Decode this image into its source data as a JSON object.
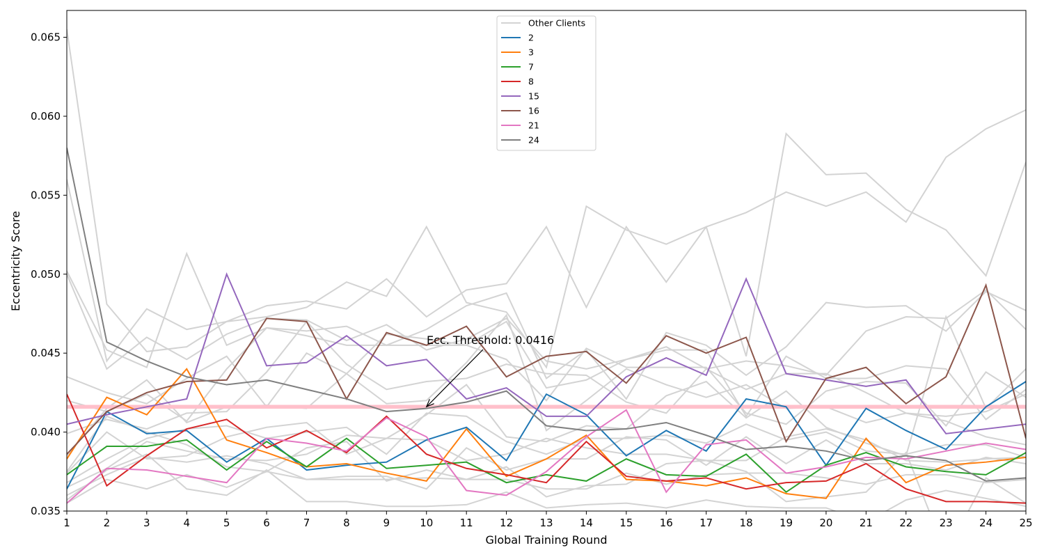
{
  "chart_data": {
    "type": "line",
    "xlabel": "Global Training Round",
    "ylabel": "Eccentricity Score",
    "x": [
      1,
      2,
      3,
      4,
      5,
      6,
      7,
      8,
      9,
      10,
      11,
      12,
      13,
      14,
      15,
      16,
      17,
      18,
      19,
      20,
      21,
      22,
      23,
      24,
      25
    ],
    "xlim": [
      1,
      25
    ],
    "ylim": [
      0.035,
      0.0667
    ],
    "yticks": [
      0.035,
      0.04,
      0.045,
      0.05,
      0.055,
      0.06,
      0.065
    ],
    "ytick_labels": [
      "0.035",
      "0.040",
      "0.045",
      "0.050",
      "0.055",
      "0.060",
      "0.065"
    ],
    "grid": false,
    "legend_position": "top-center",
    "other_clients_label": "Other Clients",
    "other_clients_color": "#d3d3d3",
    "other_clients": [
      [
        0.0655,
        0.0481,
        0.0451,
        0.0454,
        0.047,
        0.048,
        0.0483,
        0.0478,
        0.0497,
        0.0473,
        0.049,
        0.0494,
        0.053,
        0.0479,
        0.053,
        0.0495,
        0.053,
        0.0539,
        0.0552,
        0.0543,
        0.0552,
        0.0533,
        0.0574,
        0.0592,
        0.0604
      ],
      [
        0.056,
        0.0445,
        0.0478,
        0.0465,
        0.047,
        0.0473,
        0.0479,
        0.0495,
        0.0486,
        0.053,
        0.0482,
        0.0476,
        0.0441,
        0.0543,
        0.0528,
        0.0519,
        0.053,
        0.0448,
        0.0589,
        0.0563,
        0.0564,
        0.0541,
        0.0528,
        0.0499,
        0.0571
      ],
      [
        0.0502,
        0.0452,
        0.0441,
        0.0513,
        0.0455,
        0.0466,
        0.0464,
        0.0467,
        0.0455,
        0.0465,
        0.048,
        0.0488,
        0.0434,
        0.0452,
        0.0421,
        0.0463,
        0.0455,
        0.0436,
        0.0454,
        0.0482,
        0.0479,
        0.048,
        0.0464,
        0.0489,
        0.0477
      ],
      [
        0.05,
        0.044,
        0.046,
        0.0446,
        0.0462,
        0.0472,
        0.0471,
        0.0458,
        0.0468,
        0.0452,
        0.0459,
        0.0472,
        0.0445,
        0.044,
        0.0446,
        0.0454,
        0.044,
        0.0445,
        0.0442,
        0.0436,
        0.0464,
        0.0473,
        0.0472,
        0.049,
        0.0465
      ],
      [
        0.0435,
        0.0425,
        0.0418,
        0.0434,
        0.0448,
        0.0416,
        0.045,
        0.0437,
        0.0462,
        0.0459,
        0.0455,
        0.047,
        0.0428,
        0.0433,
        0.0446,
        0.0452,
        0.0452,
        0.041,
        0.0448,
        0.0434,
        0.0434,
        0.0442,
        0.044,
        0.0408,
        0.0427
      ],
      [
        0.042,
        0.0413,
        0.0424,
        0.0407,
        0.044,
        0.0466,
        0.0461,
        0.0455,
        0.0455,
        0.0455,
        0.0455,
        0.0446,
        0.042,
        0.0453,
        0.0441,
        0.0441,
        0.0441,
        0.0412,
        0.0405,
        0.0426,
        0.0432,
        0.0431,
        0.0404,
        0.0438,
        0.0422
      ],
      [
        0.0399,
        0.0408,
        0.0402,
        0.0412,
        0.0413,
        0.0438,
        0.047,
        0.0443,
        0.0427,
        0.0432,
        0.0434,
        0.0443,
        0.0437,
        0.0436,
        0.0419,
        0.0412,
        0.044,
        0.0427,
        0.0437,
        0.0437,
        0.0425,
        0.0412,
        0.041,
        0.0413,
        0.0424
      ],
      [
        0.0385,
        0.0415,
        0.0433,
        0.0406,
        0.0416,
        0.0417,
        0.0415,
        0.0437,
        0.0418,
        0.042,
        0.0444,
        0.0474,
        0.0401,
        0.042,
        0.044,
        0.043,
        0.0422,
        0.043,
        0.0415,
        0.0416,
        0.0406,
        0.0412,
        0.0407,
        0.0397,
        0.0392
      ],
      [
        0.0374,
        0.04,
        0.0383,
        0.0385,
        0.0397,
        0.0403,
        0.0406,
        0.0386,
        0.0396,
        0.0411,
        0.043,
        0.0397,
        0.0394,
        0.0404,
        0.0402,
        0.0423,
        0.0432,
        0.0409,
        0.0426,
        0.0403,
        0.0393,
        0.0385,
        0.0473,
        0.0415,
        0.044
      ],
      [
        0.0368,
        0.0383,
        0.0396,
        0.0402,
        0.0404,
        0.0396,
        0.04,
        0.0403,
        0.0386,
        0.0412,
        0.041,
        0.0394,
        0.0386,
        0.0396,
        0.0396,
        0.0398,
        0.0393,
        0.0405,
        0.0395,
        0.04,
        0.0388,
        0.0386,
        0.0392,
        0.0392,
        0.0384
      ],
      [
        0.0365,
        0.0377,
        0.0394,
        0.0388,
        0.0383,
        0.0382,
        0.0386,
        0.0398,
        0.0396,
        0.0395,
        0.0382,
        0.0386,
        0.0396,
        0.039,
        0.0386,
        0.0386,
        0.0382,
        0.0382,
        0.0397,
        0.0402,
        0.0395,
        0.0382,
        0.0381,
        0.0383,
        0.0384
      ],
      [
        0.036,
        0.0373,
        0.0384,
        0.0381,
        0.0385,
        0.038,
        0.037,
        0.0372,
        0.0372,
        0.0364,
        0.039,
        0.0376,
        0.0383,
        0.0383,
        0.0397,
        0.0395,
        0.0379,
        0.0397,
        0.038,
        0.0395,
        0.038,
        0.038,
        0.0376,
        0.0384,
        0.038
      ],
      [
        0.0355,
        0.037,
        0.0364,
        0.0373,
        0.0365,
        0.0375,
        0.037,
        0.037,
        0.037,
        0.0371,
        0.037,
        0.037,
        0.0364,
        0.0364,
        0.0374,
        0.0367,
        0.0373,
        0.0374,
        0.0374,
        0.0371,
        0.0367,
        0.0373,
        0.0373,
        0.0368,
        0.037
      ],
      [
        0.0357,
        0.0376,
        0.0386,
        0.0364,
        0.036,
        0.0376,
        0.0356,
        0.0356,
        0.0353,
        0.0353,
        0.0354,
        0.0362,
        0.0352,
        0.0354,
        0.0355,
        0.0352,
        0.0357,
        0.0353,
        0.0352,
        0.0352,
        0.0343,
        0.0357,
        0.0363,
        0.0358,
        0.0353
      ],
      [
        0.0375,
        0.041,
        0.04,
        0.0392,
        0.0378,
        0.0375,
        0.039,
        0.0394,
        0.0369,
        0.0376,
        0.037,
        0.0378,
        0.0359,
        0.0366,
        0.0367,
        0.038,
        0.0382,
        0.0375,
        0.0356,
        0.0359,
        0.0362,
        0.0387,
        0.0323,
        0.0371,
        0.0355
      ]
    ],
    "series": [
      {
        "name": "2",
        "color": "#1f77b4",
        "values": [
          0.0364,
          0.0413,
          0.0399,
          0.0401,
          0.0381,
          0.0396,
          0.0376,
          0.0379,
          0.0381,
          0.0395,
          0.0403,
          0.0382,
          0.0424,
          0.0411,
          0.0385,
          0.0401,
          0.0388,
          0.0421,
          0.0416,
          0.0379,
          0.0415,
          0.0401,
          0.0389,
          0.0416,
          0.0432
        ]
      },
      {
        "name": "3",
        "color": "#ff7f0e",
        "values": [
          0.0383,
          0.0422,
          0.0411,
          0.044,
          0.0395,
          0.0387,
          0.0378,
          0.038,
          0.0374,
          0.0369,
          0.0402,
          0.0372,
          0.0383,
          0.0398,
          0.037,
          0.0369,
          0.0366,
          0.0371,
          0.0361,
          0.0358,
          0.0396,
          0.0368,
          0.0379,
          0.0381,
          0.0384
        ]
      },
      {
        "name": "7",
        "color": "#2ca02c",
        "values": [
          0.0373,
          0.0391,
          0.0391,
          0.0395,
          0.0376,
          0.0394,
          0.0378,
          0.0396,
          0.0377,
          0.0379,
          0.0381,
          0.0368,
          0.0373,
          0.0369,
          0.0383,
          0.0373,
          0.0372,
          0.0386,
          0.0362,
          0.0379,
          0.0387,
          0.0378,
          0.0375,
          0.0373,
          0.0387
        ]
      },
      {
        "name": "8",
        "color": "#d62728",
        "values": [
          0.0424,
          0.0366,
          0.0385,
          0.0402,
          0.0408,
          0.039,
          0.0401,
          0.0387,
          0.041,
          0.0386,
          0.0377,
          0.0373,
          0.0368,
          0.0394,
          0.0372,
          0.0369,
          0.0371,
          0.0364,
          0.0368,
          0.0369,
          0.038,
          0.0364,
          0.0356,
          0.0356,
          0.0355
        ]
      },
      {
        "name": "15",
        "color": "#9467bd",
        "values": [
          0.0405,
          0.0411,
          0.0416,
          0.0421,
          0.05,
          0.0442,
          0.0444,
          0.0461,
          0.0442,
          0.0446,
          0.0421,
          0.0428,
          0.041,
          0.041,
          0.0435,
          0.0447,
          0.0436,
          0.0497,
          0.0437,
          0.0433,
          0.0429,
          0.0433,
          0.0399,
          0.0402,
          0.0405
        ]
      },
      {
        "name": "16",
        "color": "#8c564b",
        "values": [
          0.0386,
          0.0413,
          0.0425,
          0.0432,
          0.0433,
          0.0472,
          0.047,
          0.0421,
          0.0463,
          0.0455,
          0.0467,
          0.0435,
          0.0448,
          0.0451,
          0.0431,
          0.0461,
          0.045,
          0.046,
          0.0394,
          0.0434,
          0.0441,
          0.0418,
          0.0435,
          0.0493,
          0.0396
        ]
      },
      {
        "name": "21",
        "color": "#e377c2",
        "values": [
          0.0355,
          0.0377,
          0.0376,
          0.0372,
          0.0368,
          0.0396,
          0.0393,
          0.0388,
          0.0409,
          0.0397,
          0.0363,
          0.036,
          0.0375,
          0.0397,
          0.0414,
          0.0362,
          0.0392,
          0.0395,
          0.0374,
          0.0378,
          0.0384,
          0.0383,
          0.0388,
          0.0393,
          0.0389
        ]
      },
      {
        "name": "24",
        "color": "#7f7f7f",
        "values": [
          0.058,
          0.0457,
          0.0445,
          0.0435,
          0.043,
          0.0433,
          0.0427,
          0.0421,
          0.0413,
          0.0415,
          0.0419,
          0.0426,
          0.0404,
          0.0401,
          0.0402,
          0.0406,
          0.0398,
          0.0389,
          0.0391,
          0.0388,
          0.0382,
          0.0385,
          0.0382,
          0.0369,
          0.0371
        ]
      }
    ],
    "threshold": {
      "value": 0.0416,
      "color": "#ffc0cb"
    },
    "annotation": {
      "text": "Ecc. Threshold: 0.0416",
      "x": 10,
      "y": 0.0416
    }
  }
}
